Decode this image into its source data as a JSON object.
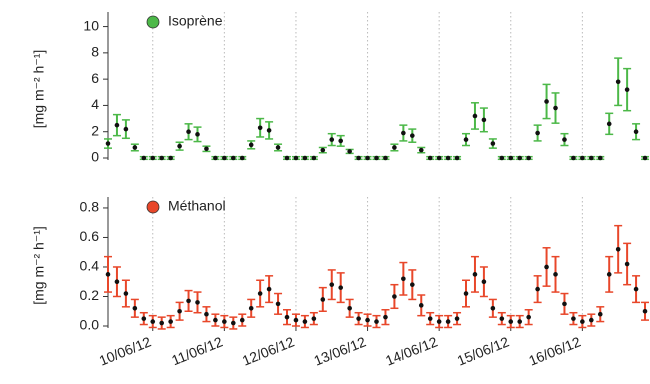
{
  "chart_data": [
    {
      "type": "line",
      "ylabel": "[mg m⁻² h⁻¹]",
      "legend": "top-left",
      "grid": true,
      "marker_color": "#111111",
      "ylim": [
        0,
        10.5
      ],
      "yticks": [
        0,
        2,
        4,
        6,
        8,
        10
      ],
      "xlim": [
        "2012-06-09T09:00",
        "2012-06-16T22:00"
      ],
      "x": [
        "2012-06-09T09:00",
        "2012-06-09T12:00",
        "2012-06-09T15:00",
        "2012-06-09T18:00",
        "2012-06-09T21:00",
        "2012-06-10T00:00",
        "2012-06-10T03:00",
        "2012-06-10T06:00",
        "2012-06-10T09:00",
        "2012-06-10T12:00",
        "2012-06-10T15:00",
        "2012-06-10T18:00",
        "2012-06-10T21:00",
        "2012-06-11T00:00",
        "2012-06-11T03:00",
        "2012-06-11T06:00",
        "2012-06-11T09:00",
        "2012-06-11T12:00",
        "2012-06-11T15:00",
        "2012-06-11T18:00",
        "2012-06-11T21:00",
        "2012-06-12T00:00",
        "2012-06-12T03:00",
        "2012-06-12T06:00",
        "2012-06-12T09:00",
        "2012-06-12T12:00",
        "2012-06-12T15:00",
        "2012-06-12T18:00",
        "2012-06-12T21:00",
        "2012-06-13T00:00",
        "2012-06-13T03:00",
        "2012-06-13T06:00",
        "2012-06-13T09:00",
        "2012-06-13T12:00",
        "2012-06-13T15:00",
        "2012-06-13T18:00",
        "2012-06-13T21:00",
        "2012-06-14T00:00",
        "2012-06-14T03:00",
        "2012-06-14T06:00",
        "2012-06-14T09:00",
        "2012-06-14T12:00",
        "2012-06-14T15:00",
        "2012-06-14T18:00",
        "2012-06-14T21:00",
        "2012-06-15T00:00",
        "2012-06-15T03:00",
        "2012-06-15T06:00",
        "2012-06-15T09:00",
        "2012-06-15T12:00",
        "2012-06-15T15:00",
        "2012-06-15T18:00",
        "2012-06-15T21:00",
        "2012-06-16T00:00",
        "2012-06-16T03:00",
        "2012-06-16T06:00",
        "2012-06-16T09:00",
        "2012-06-16T12:00",
        "2012-06-16T15:00",
        "2012-06-16T18:00",
        "2012-06-16T21:00"
      ],
      "series": [
        {
          "name": "Isoprène",
          "color": "#4cb848",
          "values": [
            1.1,
            2.5,
            2.2,
            0.8,
            0,
            0,
            0,
            0,
            0.9,
            2.0,
            1.8,
            0.7,
            0,
            0,
            0,
            0,
            1.0,
            2.3,
            2.1,
            0.8,
            0,
            0,
            0,
            0,
            0.6,
            1.4,
            1.3,
            0.5,
            0,
            0,
            0,
            0,
            0.8,
            1.9,
            1.7,
            0.6,
            0,
            0,
            0,
            0,
            1.4,
            3.2,
            2.9,
            1.1,
            0,
            0,
            0,
            0,
            1.9,
            4.3,
            3.8,
            1.4,
            0,
            0,
            0,
            0,
            2.6,
            5.8,
            5.2,
            2.0,
            0
          ],
          "errors": [
            0.35,
            0.8,
            0.7,
            0.25,
            0.1,
            0.1,
            0.1,
            0.1,
            0.3,
            0.6,
            0.55,
            0.2,
            0.1,
            0.1,
            0.1,
            0.1,
            0.3,
            0.7,
            0.65,
            0.25,
            0.1,
            0.1,
            0.1,
            0.1,
            0.2,
            0.45,
            0.4,
            0.15,
            0.1,
            0.1,
            0.1,
            0.1,
            0.25,
            0.6,
            0.5,
            0.2,
            0.1,
            0.1,
            0.1,
            0.1,
            0.45,
            1.0,
            0.9,
            0.35,
            0.1,
            0.1,
            0.1,
            0.1,
            0.6,
            1.3,
            1.15,
            0.45,
            0.1,
            0.1,
            0.1,
            0.1,
            0.8,
            1.8,
            1.6,
            0.6,
            0.1
          ]
        }
      ]
    },
    {
      "type": "line",
      "ylabel": "[mg m⁻² h⁻¹]",
      "legend": "top-left",
      "grid": true,
      "marker_color": "#111111",
      "ylim": [
        0,
        0.82
      ],
      "yticks": [
        {
          "value": 0,
          "label": "0.0"
        },
        0.2,
        0.4,
        0.6,
        0.8
      ],
      "xlim": [
        "2012-06-09T09:00",
        "2012-06-16T22:00"
      ],
      "xticks": [
        {
          "value": "2012-06-10T00:00",
          "label": "10/06/12"
        },
        {
          "value": "2012-06-11T00:00",
          "label": "11/06/12"
        },
        {
          "value": "2012-06-12T00:00",
          "label": "12/06/12"
        },
        {
          "value": "2012-06-13T00:00",
          "label": "13/06/12"
        },
        {
          "value": "2012-06-14T00:00",
          "label": "14/06/12"
        },
        {
          "value": "2012-06-15T00:00",
          "label": "15/06/12"
        },
        {
          "value": "2012-06-16T00:00",
          "label": "16/06/12"
        }
      ],
      "x": [
        "2012-06-09T09:00",
        "2012-06-09T12:00",
        "2012-06-09T15:00",
        "2012-06-09T18:00",
        "2012-06-09T21:00",
        "2012-06-10T00:00",
        "2012-06-10T03:00",
        "2012-06-10T06:00",
        "2012-06-10T09:00",
        "2012-06-10T12:00",
        "2012-06-10T15:00",
        "2012-06-10T18:00",
        "2012-06-10T21:00",
        "2012-06-11T00:00",
        "2012-06-11T03:00",
        "2012-06-11T06:00",
        "2012-06-11T09:00",
        "2012-06-11T12:00",
        "2012-06-11T15:00",
        "2012-06-11T18:00",
        "2012-06-11T21:00",
        "2012-06-12T00:00",
        "2012-06-12T03:00",
        "2012-06-12T06:00",
        "2012-06-12T09:00",
        "2012-06-12T12:00",
        "2012-06-12T15:00",
        "2012-06-12T18:00",
        "2012-06-12T21:00",
        "2012-06-13T00:00",
        "2012-06-13T03:00",
        "2012-06-13T06:00",
        "2012-06-13T09:00",
        "2012-06-13T12:00",
        "2012-06-13T15:00",
        "2012-06-13T18:00",
        "2012-06-13T21:00",
        "2012-06-14T00:00",
        "2012-06-14T03:00",
        "2012-06-14T06:00",
        "2012-06-14T09:00",
        "2012-06-14T12:00",
        "2012-06-14T15:00",
        "2012-06-14T18:00",
        "2012-06-14T21:00",
        "2012-06-15T00:00",
        "2012-06-15T03:00",
        "2012-06-15T06:00",
        "2012-06-15T09:00",
        "2012-06-15T12:00",
        "2012-06-15T15:00",
        "2012-06-15T18:00",
        "2012-06-15T21:00",
        "2012-06-16T00:00",
        "2012-06-16T03:00",
        "2012-06-16T06:00",
        "2012-06-16T09:00",
        "2012-06-16T12:00",
        "2012-06-16T15:00",
        "2012-06-16T18:00",
        "2012-06-16T21:00"
      ],
      "series": [
        {
          "name": "Méthanol",
          "color": "#e8472a",
          "values": [
            0.35,
            0.3,
            0.22,
            0.12,
            0.05,
            0.03,
            0.02,
            0.03,
            0.1,
            0.17,
            0.16,
            0.08,
            0.04,
            0.03,
            0.02,
            0.04,
            0.12,
            0.22,
            0.25,
            0.15,
            0.06,
            0.04,
            0.03,
            0.05,
            0.18,
            0.28,
            0.26,
            0.12,
            0.05,
            0.04,
            0.03,
            0.06,
            0.2,
            0.32,
            0.28,
            0.14,
            0.05,
            0.03,
            0.03,
            0.05,
            0.22,
            0.35,
            0.3,
            0.12,
            0.05,
            0.03,
            0.03,
            0.06,
            0.25,
            0.4,
            0.35,
            0.15,
            0.05,
            0.03,
            0.04,
            0.08,
            0.35,
            0.52,
            0.42,
            0.25,
            0.1
          ],
          "errors": [
            0.12,
            0.1,
            0.09,
            0.06,
            0.04,
            0.04,
            0.04,
            0.04,
            0.06,
            0.07,
            0.07,
            0.05,
            0.04,
            0.04,
            0.04,
            0.04,
            0.06,
            0.09,
            0.09,
            0.07,
            0.05,
            0.04,
            0.04,
            0.04,
            0.08,
            0.1,
            0.1,
            0.06,
            0.04,
            0.04,
            0.04,
            0.05,
            0.08,
            0.11,
            0.1,
            0.07,
            0.04,
            0.04,
            0.04,
            0.04,
            0.09,
            0.12,
            0.1,
            0.06,
            0.04,
            0.04,
            0.04,
            0.05,
            0.09,
            0.13,
            0.12,
            0.07,
            0.04,
            0.04,
            0.04,
            0.05,
            0.12,
            0.16,
            0.14,
            0.09,
            0.06
          ]
        }
      ]
    }
  ]
}
